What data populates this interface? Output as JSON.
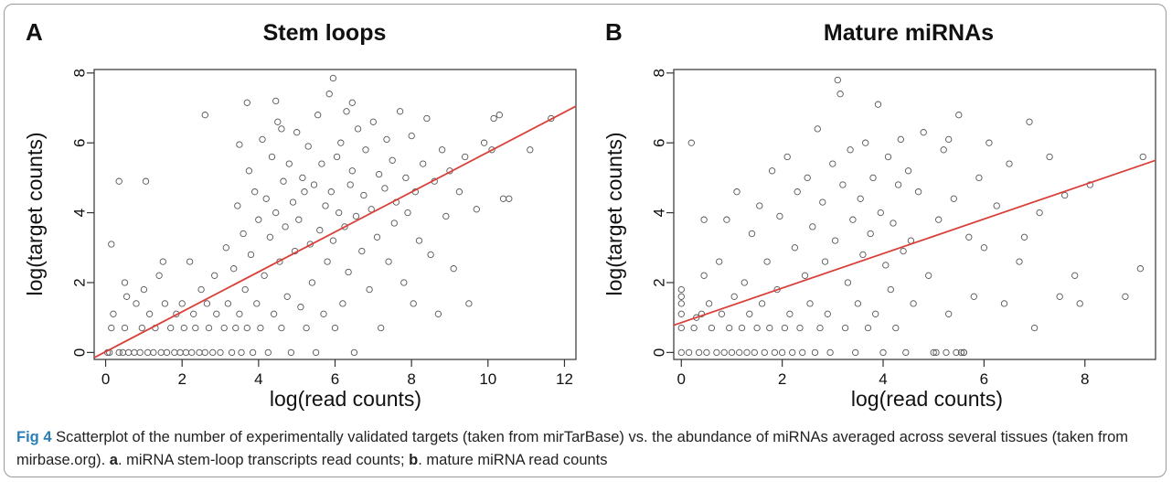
{
  "caption": {
    "label": "Fig 4",
    "text_1": " Scatterplot of the number of experimentally validated targets (taken from mirTarBase) vs. the abundance of miRNAs averaged across several tissues (taken from mirbase.org). ",
    "part_a_letter": "a",
    "text_2": ". miRNA stem-loop transcripts read counts; ",
    "part_b_letter": "b",
    "text_3": ". mature miRNA read counts"
  },
  "colors": {
    "points": "#555555",
    "fit_line": "#d9403a",
    "axis": "#333333"
  },
  "chart_data": [
    {
      "type": "scatter",
      "panel_label": "A",
      "title": "Stem loops",
      "xlabel": "log(read counts)",
      "ylabel": "log(target counts)",
      "xlim": [
        -0.3,
        12.3
      ],
      "ylim": [
        -0.2,
        8.1
      ],
      "xticks": [
        0,
        2,
        4,
        6,
        8,
        10,
        12
      ],
      "yticks": [
        0,
        2,
        4,
        6,
        8
      ],
      "fit_line": {
        "x": [
          -0.3,
          12.3
        ],
        "y": [
          -0.15,
          7.05
        ]
      },
      "points": [
        [
          0.05,
          0.0
        ],
        [
          0.1,
          0.0
        ],
        [
          0.15,
          0.7
        ],
        [
          0.2,
          1.1
        ],
        [
          0.35,
          0.0
        ],
        [
          0.45,
          0.0
        ],
        [
          0.5,
          0.7
        ],
        [
          0.55,
          1.6
        ],
        [
          0.6,
          0.0
        ],
        [
          0.75,
          0.0
        ],
        [
          0.8,
          1.4
        ],
        [
          0.9,
          0.0
        ],
        [
          0.95,
          0.7
        ],
        [
          1.0,
          1.8
        ],
        [
          1.1,
          0.0
        ],
        [
          1.15,
          1.1
        ],
        [
          1.25,
          0.0
        ],
        [
          1.3,
          0.7
        ],
        [
          1.4,
          2.2
        ],
        [
          1.45,
          0.0
        ],
        [
          1.55,
          1.4
        ],
        [
          1.6,
          0.0
        ],
        [
          1.7,
          0.7
        ],
        [
          1.8,
          0.0
        ],
        [
          1.85,
          1.1
        ],
        [
          1.95,
          0.0
        ],
        [
          2.0,
          1.4
        ],
        [
          2.05,
          0.7
        ],
        [
          2.1,
          0.0
        ],
        [
          2.2,
          2.6
        ],
        [
          2.25,
          0.0
        ],
        [
          2.3,
          1.1
        ],
        [
          2.35,
          0.7
        ],
        [
          2.45,
          0.0
        ],
        [
          2.5,
          1.8
        ],
        [
          2.6,
          0.0
        ],
        [
          2.65,
          1.4
        ],
        [
          2.7,
          0.7
        ],
        [
          2.8,
          0.0
        ],
        [
          2.85,
          2.2
        ],
        [
          2.9,
          1.1
        ],
        [
          3.0,
          0.0
        ],
        [
          3.1,
          0.7
        ],
        [
          3.15,
          3.0
        ],
        [
          3.2,
          1.4
        ],
        [
          3.3,
          0.0
        ],
        [
          3.35,
          2.4
        ],
        [
          3.4,
          0.7
        ],
        [
          3.45,
          4.2
        ],
        [
          3.5,
          1.1
        ],
        [
          3.55,
          0.0
        ],
        [
          3.6,
          3.4
        ],
        [
          3.65,
          1.8
        ],
        [
          3.7,
          0.7
        ],
        [
          3.75,
          5.2
        ],
        [
          3.8,
          2.8
        ],
        [
          3.85,
          0.0
        ],
        [
          3.9,
          4.6
        ],
        [
          3.95,
          1.4
        ],
        [
          4.0,
          3.8
        ],
        [
          4.05,
          0.7
        ],
        [
          4.1,
          6.1
        ],
        [
          4.15,
          2.2
        ],
        [
          4.2,
          4.4
        ],
        [
          4.25,
          0.0
        ],
        [
          4.3,
          3.3
        ],
        [
          4.35,
          5.6
        ],
        [
          4.4,
          1.1
        ],
        [
          4.45,
          4.0
        ],
        [
          4.5,
          6.6
        ],
        [
          4.55,
          2.6
        ],
        [
          4.6,
          0.7
        ],
        [
          4.65,
          4.9
        ],
        [
          4.7,
          3.6
        ],
        [
          4.75,
          1.6
        ],
        [
          4.8,
          5.4
        ],
        [
          4.85,
          0.0
        ],
        [
          4.9,
          4.3
        ],
        [
          4.95,
          2.9
        ],
        [
          5.0,
          6.3
        ],
        [
          5.05,
          3.8
        ],
        [
          5.1,
          1.3
        ],
        [
          5.15,
          5.0
        ],
        [
          5.2,
          4.6
        ],
        [
          5.25,
          0.7
        ],
        [
          5.3,
          5.9
        ],
        [
          5.35,
          3.1
        ],
        [
          5.4,
          2.0
        ],
        [
          5.45,
          4.8
        ],
        [
          5.5,
          0.0
        ],
        [
          5.55,
          6.8
        ],
        [
          5.6,
          3.5
        ],
        [
          5.65,
          5.4
        ],
        [
          5.7,
          1.1
        ],
        [
          5.75,
          4.2
        ],
        [
          5.8,
          2.6
        ],
        [
          5.85,
          7.4
        ],
        [
          5.9,
          4.6
        ],
        [
          5.95,
          3.2
        ],
        [
          6.0,
          0.7
        ],
        [
          6.05,
          5.6
        ],
        [
          6.1,
          4.0
        ],
        [
          6.15,
          6.0
        ],
        [
          6.2,
          1.4
        ],
        [
          6.25,
          3.6
        ],
        [
          6.3,
          6.9
        ],
        [
          6.35,
          2.3
        ],
        [
          6.4,
          4.8
        ],
        [
          6.45,
          5.2
        ],
        [
          6.5,
          0.0
        ],
        [
          6.55,
          3.9
        ],
        [
          6.6,
          6.4
        ],
        [
          6.7,
          2.9
        ],
        [
          6.75,
          4.5
        ],
        [
          6.8,
          5.8
        ],
        [
          6.9,
          1.8
        ],
        [
          6.95,
          4.1
        ],
        [
          7.0,
          6.6
        ],
        [
          7.1,
          3.3
        ],
        [
          7.15,
          5.1
        ],
        [
          7.2,
          0.7
        ],
        [
          7.3,
          4.7
        ],
        [
          7.35,
          6.1
        ],
        [
          7.4,
          2.6
        ],
        [
          7.5,
          5.5
        ],
        [
          7.55,
          3.7
        ],
        [
          7.6,
          4.3
        ],
        [
          7.7,
          6.9
        ],
        [
          7.8,
          2.0
        ],
        [
          7.85,
          5.0
        ],
        [
          7.9,
          4.0
        ],
        [
          8.0,
          6.2
        ],
        [
          8.05,
          1.4
        ],
        [
          8.1,
          4.6
        ],
        [
          8.2,
          3.2
        ],
        [
          8.3,
          5.4
        ],
        [
          8.4,
          6.7
        ],
        [
          8.5,
          2.8
        ],
        [
          8.6,
          4.9
        ],
        [
          8.7,
          1.1
        ],
        [
          8.8,
          5.8
        ],
        [
          8.9,
          3.9
        ],
        [
          9.0,
          5.2
        ],
        [
          9.1,
          2.4
        ],
        [
          9.25,
          4.6
        ],
        [
          9.4,
          5.6
        ],
        [
          9.5,
          1.4
        ],
        [
          9.7,
          4.1
        ],
        [
          9.9,
          6.0
        ],
        [
          10.1,
          5.8
        ],
        [
          10.15,
          6.7
        ],
        [
          10.3,
          6.8
        ],
        [
          10.4,
          4.4
        ],
        [
          10.55,
          4.4
        ],
        [
          11.1,
          5.8
        ],
        [
          11.65,
          6.7
        ],
        [
          1.05,
          4.9
        ],
        [
          0.35,
          4.9
        ],
        [
          0.15,
          3.1
        ],
        [
          1.5,
          2.6
        ],
        [
          0.5,
          2.0
        ],
        [
          2.6,
          6.8
        ],
        [
          3.7,
          7.15
        ],
        [
          4.45,
          7.2
        ],
        [
          5.95,
          7.85
        ],
        [
          6.45,
          7.15
        ],
        [
          4.6,
          6.4
        ],
        [
          3.5,
          5.95
        ]
      ]
    },
    {
      "type": "scatter",
      "panel_label": "B",
      "title": "Mature miRNAs",
      "xlabel": "log(read counts)",
      "ylabel": "log(target counts)",
      "xlim": [
        -0.15,
        9.4
      ],
      "ylim": [
        -0.2,
        8.1
      ],
      "xticks": [
        0,
        2,
        4,
        6,
        8
      ],
      "yticks": [
        0,
        2,
        4,
        6,
        8
      ],
      "fit_line": {
        "x": [
          -0.15,
          9.4
        ],
        "y": [
          0.78,
          5.5
        ]
      },
      "points": [
        [
          0.0,
          0.0
        ],
        [
          0.0,
          0.7
        ],
        [
          0.0,
          1.1
        ],
        [
          0.0,
          1.4
        ],
        [
          0.0,
          1.6
        ],
        [
          0.0,
          1.8
        ],
        [
          0.15,
          0.0
        ],
        [
          0.2,
          6.0
        ],
        [
          0.25,
          0.7
        ],
        [
          0.35,
          0.0
        ],
        [
          0.4,
          1.1
        ],
        [
          0.45,
          2.2
        ],
        [
          0.5,
          0.0
        ],
        [
          0.55,
          1.4
        ],
        [
          0.6,
          0.7
        ],
        [
          0.7,
          0.0
        ],
        [
          0.75,
          2.6
        ],
        [
          0.8,
          1.1
        ],
        [
          0.85,
          0.0
        ],
        [
          0.9,
          3.8
        ],
        [
          0.95,
          0.7
        ],
        [
          1.0,
          0.0
        ],
        [
          1.05,
          1.6
        ],
        [
          1.1,
          4.6
        ],
        [
          1.15,
          0.0
        ],
        [
          1.2,
          0.7
        ],
        [
          1.25,
          2.0
        ],
        [
          1.3,
          0.0
        ],
        [
          1.35,
          1.1
        ],
        [
          1.4,
          3.4
        ],
        [
          1.45,
          0.0
        ],
        [
          1.5,
          0.7
        ],
        [
          1.55,
          4.2
        ],
        [
          1.6,
          1.4
        ],
        [
          1.65,
          0.0
        ],
        [
          1.7,
          2.6
        ],
        [
          1.75,
          0.7
        ],
        [
          1.8,
          5.2
        ],
        [
          1.85,
          0.0
        ],
        [
          1.9,
          1.8
        ],
        [
          1.95,
          3.9
        ],
        [
          2.0,
          0.0
        ],
        [
          2.05,
          0.7
        ],
        [
          2.1,
          5.6
        ],
        [
          2.15,
          1.1
        ],
        [
          2.2,
          0.0
        ],
        [
          2.25,
          3.0
        ],
        [
          2.3,
          4.6
        ],
        [
          2.35,
          0.7
        ],
        [
          2.4,
          0.0
        ],
        [
          2.45,
          2.2
        ],
        [
          2.5,
          5.0
        ],
        [
          2.55,
          1.4
        ],
        [
          2.6,
          3.6
        ],
        [
          2.65,
          0.0
        ],
        [
          2.7,
          6.4
        ],
        [
          2.75,
          0.7
        ],
        [
          2.8,
          4.3
        ],
        [
          2.85,
          2.6
        ],
        [
          2.9,
          1.1
        ],
        [
          2.95,
          0.0
        ],
        [
          3.0,
          5.4
        ],
        [
          3.05,
          3.2
        ],
        [
          3.1,
          7.8
        ],
        [
          3.15,
          7.4
        ],
        [
          3.2,
          4.8
        ],
        [
          3.25,
          0.7
        ],
        [
          3.3,
          2.0
        ],
        [
          3.35,
          5.8
        ],
        [
          3.4,
          3.8
        ],
        [
          3.45,
          0.0
        ],
        [
          3.5,
          1.4
        ],
        [
          3.55,
          4.4
        ],
        [
          3.6,
          2.8
        ],
        [
          3.65,
          6.0
        ],
        [
          3.7,
          0.7
        ],
        [
          3.75,
          3.4
        ],
        [
          3.8,
          5.0
        ],
        [
          3.85,
          1.1
        ],
        [
          3.9,
          7.1
        ],
        [
          3.95,
          4.0
        ],
        [
          4.0,
          0.0
        ],
        [
          4.05,
          2.5
        ],
        [
          4.1,
          5.6
        ],
        [
          4.15,
          1.8
        ],
        [
          4.2,
          3.7
        ],
        [
          4.25,
          0.7
        ],
        [
          4.3,
          4.8
        ],
        [
          4.35,
          6.1
        ],
        [
          4.4,
          2.9
        ],
        [
          4.45,
          0.0
        ],
        [
          4.5,
          5.2
        ],
        [
          4.55,
          3.2
        ],
        [
          4.6,
          1.4
        ],
        [
          4.7,
          4.6
        ],
        [
          4.8,
          6.3
        ],
        [
          4.9,
          2.2
        ],
        [
          5.0,
          0.0
        ],
        [
          5.1,
          3.8
        ],
        [
          5.2,
          5.8
        ],
        [
          5.3,
          1.1
        ],
        [
          5.4,
          4.4
        ],
        [
          5.5,
          6.8
        ],
        [
          5.6,
          0.0
        ],
        [
          5.7,
          3.3
        ],
        [
          5.8,
          1.6
        ],
        [
          5.9,
          5.0
        ],
        [
          6.0,
          3.0
        ],
        [
          6.1,
          6.0
        ],
        [
          6.25,
          4.2
        ],
        [
          6.4,
          1.4
        ],
        [
          6.5,
          5.4
        ],
        [
          6.7,
          2.6
        ],
        [
          6.8,
          3.3
        ],
        [
          6.9,
          6.6
        ],
        [
          7.0,
          0.7
        ],
        [
          7.1,
          4.0
        ],
        [
          7.3,
          5.6
        ],
        [
          7.5,
          1.6
        ],
        [
          7.6,
          4.5
        ],
        [
          7.8,
          2.2
        ],
        [
          7.9,
          1.4
        ],
        [
          8.1,
          4.8
        ],
        [
          8.8,
          1.6
        ],
        [
          9.1,
          2.4
        ],
        [
          9.15,
          5.6
        ],
        [
          0.45,
          3.8
        ],
        [
          0.3,
          1.0
        ],
        [
          5.05,
          0.0
        ],
        [
          5.25,
          0.0
        ],
        [
          5.45,
          0.0
        ],
        [
          5.55,
          0.0
        ],
        [
          5.6,
          0.0
        ],
        [
          5.3,
          6.1
        ]
      ]
    }
  ]
}
